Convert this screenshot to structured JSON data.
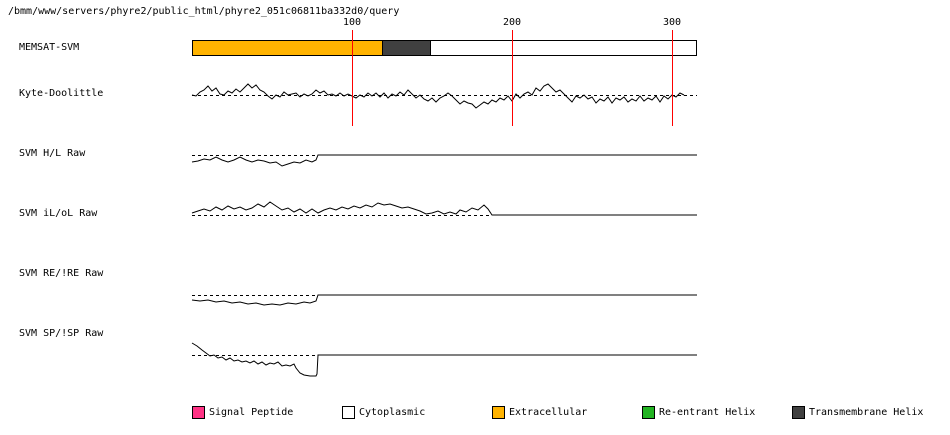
{
  "path": "/bmm/www/servers/phyre2/public_html/phyre2_051c06811ba332d0/query",
  "ruler_ticks": [
    "100",
    "200",
    "300"
  ],
  "track_labels": {
    "memsat": "MEMSAT-SVM",
    "kd": "Kyte-Doolittle",
    "hl": "SVM H/L Raw",
    "iloL": "SVM iL/oL Raw",
    "re": "SVM RE/!RE Raw",
    "sp": "SVM SP/!SP Raw"
  },
  "colors": {
    "signal_peptide": "#ff3385",
    "cytoplasmic": "#ffffff",
    "extracellular": "#ffb300",
    "reentrant_helix": "#22b322",
    "transmembrane_helix": "#404040",
    "ruler": "#ff0000"
  },
  "legend": [
    {
      "label": "Signal Peptide",
      "color": "#ff3385"
    },
    {
      "label": "Cytoplasmic",
      "color": "#ffffff"
    },
    {
      "label": "Extracellular",
      "color": "#ffb300"
    },
    {
      "label": "Re-entrant Helix",
      "color": "#22b322"
    },
    {
      "label": "Transmembrane Helix",
      "color": "#404040"
    }
  ]
}
